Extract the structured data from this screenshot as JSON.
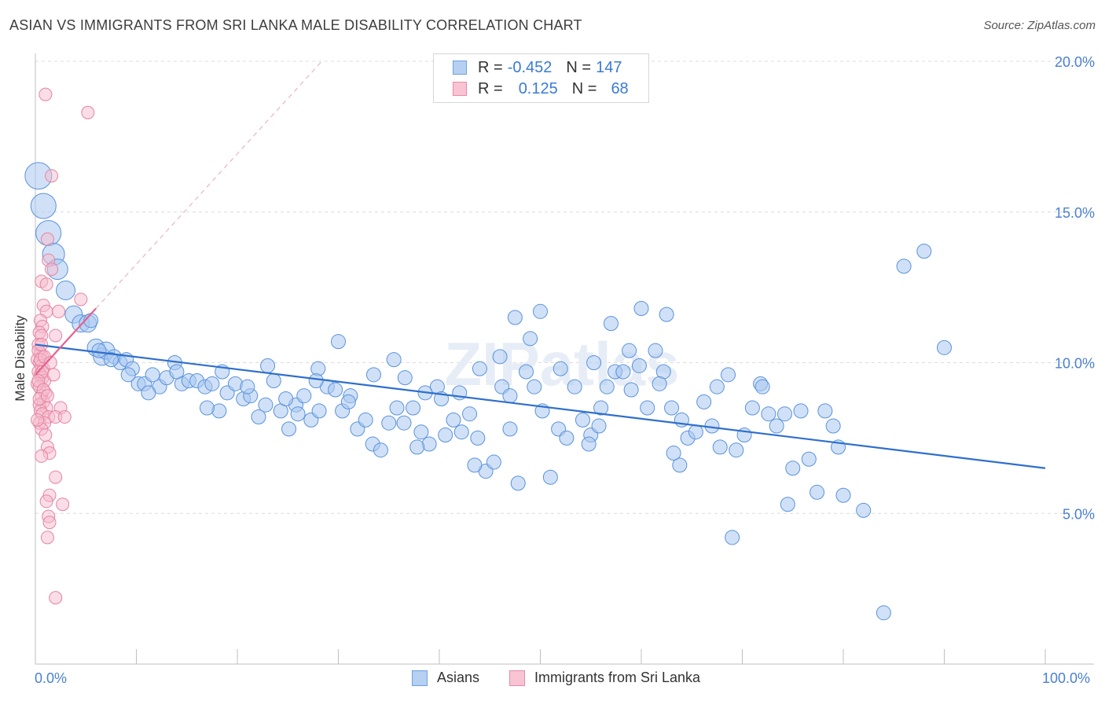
{
  "title": "ASIAN VS IMMIGRANTS FROM SRI LANKA MALE DISABILITY CORRELATION CHART",
  "source": "Source: ZipAtlas.com",
  "watermark": "ZIPatlas",
  "legend": {
    "rows": [
      {
        "r_label": "R = ",
        "r_value": "-0.452",
        "n_label": "N = ",
        "n_value": "147",
        "fill": "#b6d0f2",
        "stroke": "#6f9fe0"
      },
      {
        "r_label": "R = ",
        "r_value": "0.125",
        "n_label": "N = ",
        "n_value": "68",
        "fill": "#f8c4d3",
        "stroke": "#e98aa7"
      }
    ]
  },
  "colors": {
    "asian_fill": "#a9c8f0",
    "asian_stroke": "#5a92dc",
    "asian_line": "#2f6fcc",
    "srilanka_fill": "#f6bccd",
    "srilanka_stroke": "#e585a3",
    "srilanka_line": "#e8608e",
    "grid": "#dcdcdc",
    "tick_label": "#4a80d0"
  },
  "chart_data": {
    "type": "scatter",
    "title": "ASIAN VS IMMIGRANTS FROM SRI LANKA MALE DISABILITY CORRELATION CHART",
    "xlabel": "",
    "ylabel": "Male Disability",
    "xlim": [
      0,
      100
    ],
    "ylim": [
      0,
      20
    ],
    "x_tick_labels": [
      "0.0%",
      "100.0%"
    ],
    "y_ticks": [
      5,
      10,
      15,
      20
    ],
    "y_tick_labels": [
      "5.0%",
      "10.0%",
      "15.0%",
      "20.0%"
    ],
    "grid": "horizontal dashed",
    "legend_position": "bottom",
    "series": [
      {
        "name": "Asians",
        "r": -0.452,
        "n": 147,
        "trend": {
          "x": [
            0,
            100
          ],
          "y": [
            10.6,
            6.5
          ]
        },
        "points": [
          [
            0.3,
            16.2
          ],
          [
            0.8,
            15.2
          ],
          [
            1.3,
            14.3
          ],
          [
            1.8,
            13.6
          ],
          [
            2.2,
            13.1
          ],
          [
            3.0,
            12.4
          ],
          [
            3.8,
            11.6
          ],
          [
            4.5,
            11.3
          ],
          [
            5.2,
            11.3
          ],
          [
            6.0,
            10.5
          ],
          [
            6.6,
            10.2
          ],
          [
            7.0,
            10.4
          ],
          [
            7.8,
            10.2
          ],
          [
            8.4,
            10.0
          ],
          [
            9.0,
            10.1
          ],
          [
            9.6,
            9.8
          ],
          [
            10.2,
            9.3
          ],
          [
            10.8,
            9.3
          ],
          [
            11.6,
            9.6
          ],
          [
            12.3,
            9.2
          ],
          [
            13.0,
            9.5
          ],
          [
            13.8,
            10.0
          ],
          [
            14.5,
            9.3
          ],
          [
            15.2,
            9.4
          ],
          [
            16.0,
            9.4
          ],
          [
            16.8,
            9.2
          ],
          [
            17.5,
            9.3
          ],
          [
            18.2,
            8.4
          ],
          [
            19.0,
            9.0
          ],
          [
            19.8,
            9.3
          ],
          [
            20.6,
            8.8
          ],
          [
            21.3,
            8.9
          ],
          [
            22.1,
            8.2
          ],
          [
            22.8,
            8.6
          ],
          [
            23.6,
            9.4
          ],
          [
            24.3,
            8.4
          ],
          [
            25.1,
            7.8
          ],
          [
            25.8,
            8.6
          ],
          [
            26.6,
            8.9
          ],
          [
            27.3,
            8.1
          ],
          [
            28.1,
            8.4
          ],
          [
            28.9,
            9.2
          ],
          [
            29.7,
            9.1
          ],
          [
            30.4,
            8.4
          ],
          [
            31.2,
            8.9
          ],
          [
            31.9,
            7.8
          ],
          [
            32.7,
            8.1
          ],
          [
            33.4,
            7.3
          ],
          [
            34.2,
            7.1
          ],
          [
            35.0,
            8.0
          ],
          [
            35.8,
            8.5
          ],
          [
            36.6,
            9.5
          ],
          [
            37.4,
            8.5
          ],
          [
            38.2,
            7.7
          ],
          [
            39.0,
            7.3
          ],
          [
            39.8,
            9.2
          ],
          [
            40.6,
            7.6
          ],
          [
            41.4,
            8.1
          ],
          [
            42.2,
            7.7
          ],
          [
            43.0,
            8.3
          ],
          [
            43.8,
            7.5
          ],
          [
            44.6,
            6.4
          ],
          [
            45.4,
            6.7
          ],
          [
            46.2,
            9.2
          ],
          [
            47.0,
            8.9
          ],
          [
            47.8,
            6.0
          ],
          [
            48.6,
            9.7
          ],
          [
            49.4,
            9.2
          ],
          [
            50.2,
            8.4
          ],
          [
            51.0,
            6.2
          ],
          [
            51.8,
            7.8
          ],
          [
            52.6,
            7.5
          ],
          [
            53.4,
            9.2
          ],
          [
            54.2,
            8.1
          ],
          [
            55.0,
            7.6
          ],
          [
            55.8,
            7.9
          ],
          [
            56.6,
            9.2
          ],
          [
            57.4,
            9.7
          ],
          [
            58.2,
            9.7
          ],
          [
            59.0,
            9.1
          ],
          [
            59.8,
            9.9
          ],
          [
            60.6,
            8.5
          ],
          [
            61.4,
            10.4
          ],
          [
            62.2,
            9.7
          ],
          [
            63.0,
            8.5
          ],
          [
            63.8,
            6.6
          ],
          [
            64.6,
            7.5
          ],
          [
            65.4,
            7.7
          ],
          [
            66.2,
            8.7
          ],
          [
            67.0,
            7.9
          ],
          [
            67.8,
            7.2
          ],
          [
            68.6,
            9.6
          ],
          [
            69.4,
            7.1
          ],
          [
            70.2,
            7.6
          ],
          [
            71.0,
            8.5
          ],
          [
            71.8,
            9.3
          ],
          [
            72.6,
            8.3
          ],
          [
            73.4,
            7.9
          ],
          [
            74.2,
            8.3
          ],
          [
            75.0,
            6.5
          ],
          [
            75.8,
            8.4
          ],
          [
            76.6,
            6.8
          ],
          [
            77.4,
            5.7
          ],
          [
            78.2,
            8.4
          ],
          [
            79.0,
            7.9
          ],
          [
            80.0,
            5.6
          ],
          [
            82.0,
            5.1
          ],
          [
            84.0,
            1.7
          ],
          [
            86.0,
            13.2
          ],
          [
            88.0,
            13.7
          ],
          [
            90.0,
            10.5
          ],
          [
            69.0,
            4.2
          ],
          [
            74.5,
            5.3
          ],
          [
            60.0,
            11.8
          ],
          [
            62.5,
            11.6
          ],
          [
            57.0,
            11.3
          ],
          [
            50.0,
            11.7
          ],
          [
            49.0,
            10.8
          ],
          [
            47.5,
            11.5
          ],
          [
            30.0,
            10.7
          ],
          [
            28.0,
            9.8
          ],
          [
            23.0,
            9.9
          ],
          [
            18.5,
            9.7
          ],
          [
            35.5,
            10.1
          ],
          [
            42.0,
            9.0
          ],
          [
            52.0,
            9.8
          ],
          [
            56.0,
            8.5
          ],
          [
            36.5,
            8.0
          ],
          [
            26.0,
            8.3
          ],
          [
            33.5,
            9.6
          ],
          [
            64.0,
            8.1
          ],
          [
            54.8,
            7.3
          ],
          [
            61.8,
            9.3
          ],
          [
            72.0,
            9.2
          ],
          [
            67.5,
            9.2
          ],
          [
            58.8,
            10.4
          ],
          [
            47.0,
            7.8
          ],
          [
            43.5,
            6.6
          ],
          [
            40.2,
            8.8
          ],
          [
            37.8,
            7.2
          ],
          [
            31.0,
            8.7
          ],
          [
            24.8,
            8.8
          ],
          [
            21.0,
            9.2
          ],
          [
            17.0,
            8.5
          ],
          [
            14.0,
            9.7
          ],
          [
            11.2,
            9.0
          ],
          [
            9.2,
            9.6
          ],
          [
            7.5,
            10.1
          ],
          [
            6.3,
            10.4
          ],
          [
            5.5,
            11.4
          ],
          [
            44.0,
            9.8
          ],
          [
            46.0,
            10.2
          ],
          [
            38.6,
            9.0
          ],
          [
            27.8,
            9.4
          ],
          [
            55.3,
            10.0
          ],
          [
            63.2,
            7.0
          ],
          [
            79.5,
            7.2
          ]
        ]
      },
      {
        "name": "Immigrants from Sri Lanka",
        "r": 0.125,
        "n": 68,
        "trend": {
          "x": [
            0,
            6
          ],
          "y": [
            9.6,
            11.8
          ]
        },
        "points": [
          [
            1.0,
            18.9
          ],
          [
            5.2,
            18.3
          ],
          [
            1.6,
            16.2
          ],
          [
            1.2,
            14.1
          ],
          [
            1.3,
            13.4
          ],
          [
            0.6,
            12.7
          ],
          [
            1.1,
            12.6
          ],
          [
            1.6,
            13.1
          ],
          [
            4.5,
            12.1
          ],
          [
            0.8,
            11.9
          ],
          [
            1.1,
            11.7
          ],
          [
            2.3,
            11.7
          ],
          [
            0.5,
            11.4
          ],
          [
            0.7,
            11.2
          ],
          [
            0.4,
            11.0
          ],
          [
            0.6,
            10.9
          ],
          [
            2.0,
            10.9
          ],
          [
            0.3,
            10.6
          ],
          [
            0.5,
            10.3
          ],
          [
            0.7,
            10.2
          ],
          [
            0.2,
            10.1
          ],
          [
            0.4,
            10.0
          ],
          [
            0.6,
            9.9
          ],
          [
            0.8,
            9.8
          ],
          [
            0.3,
            9.7
          ],
          [
            0.5,
            9.6
          ],
          [
            0.7,
            9.5
          ],
          [
            0.9,
            9.4
          ],
          [
            0.2,
            9.3
          ],
          [
            0.4,
            9.2
          ],
          [
            1.0,
            9.0
          ],
          [
            0.6,
            8.9
          ],
          [
            0.8,
            8.7
          ],
          [
            0.4,
            8.6
          ],
          [
            1.1,
            8.5
          ],
          [
            2.5,
            8.5
          ],
          [
            0.5,
            8.4
          ],
          [
            0.7,
            8.3
          ],
          [
            1.3,
            8.2
          ],
          [
            2.0,
            8.2
          ],
          [
            2.9,
            8.2
          ],
          [
            0.4,
            8.0
          ],
          [
            0.9,
            8.0
          ],
          [
            0.6,
            7.8
          ],
          [
            1.0,
            7.6
          ],
          [
            1.2,
            7.2
          ],
          [
            1.4,
            7.0
          ],
          [
            0.6,
            6.9
          ],
          [
            2.0,
            6.2
          ],
          [
            1.4,
            5.6
          ],
          [
            1.1,
            5.4
          ],
          [
            2.7,
            5.3
          ],
          [
            1.3,
            4.9
          ],
          [
            1.4,
            4.7
          ],
          [
            1.2,
            4.2
          ],
          [
            2.0,
            2.2
          ],
          [
            0.3,
            10.4
          ],
          [
            0.5,
            10.1
          ],
          [
            0.7,
            9.7
          ],
          [
            0.9,
            10.2
          ],
          [
            0.3,
            9.4
          ],
          [
            0.8,
            9.1
          ],
          [
            1.5,
            10.0
          ],
          [
            0.4,
            8.8
          ],
          [
            1.2,
            8.9
          ],
          [
            0.6,
            10.6
          ],
          [
            1.8,
            9.6
          ],
          [
            0.2,
            8.1
          ]
        ]
      }
    ]
  },
  "axis_labels": {
    "x_min": "0.0%",
    "x_max": "100.0%",
    "ylabel": "Male Disability"
  },
  "bottom_legend": [
    {
      "label": "Asians"
    },
    {
      "label": "Immigrants from Sri Lanka"
    }
  ]
}
